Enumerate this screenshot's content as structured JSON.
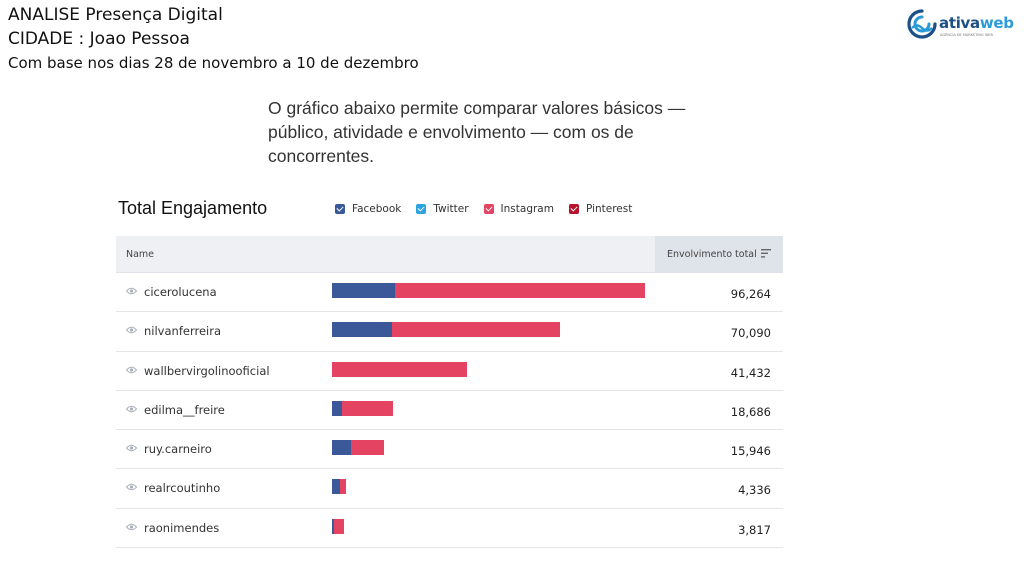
{
  "header": {
    "line1": "ANALISE Presença Digital",
    "line2": "CIDADE : Joao Pessoa",
    "line3": "Com base nos dias 28 de novembro a 10 de dezembro"
  },
  "logo": {
    "name_part1": "ativa",
    "name_part2": "web",
    "tagline": "AGÊNCIA DE MARKETING WEB"
  },
  "intro": "O gráfico abaixo permite comparar valores básicos — público, atividade e envolvimento — com os de concorrentes.",
  "legend": [
    {
      "label": "Facebook",
      "color": "#3b5998"
    },
    {
      "label": "Twitter",
      "color": "#2aa3e0"
    },
    {
      "label": "Instagram",
      "color": "#e44462"
    },
    {
      "label": "Pinterest",
      "color": "#b5122b"
    }
  ],
  "table": {
    "col_name": "Name",
    "col_total": "Envolvimento total"
  },
  "colors": {
    "facebook": "#3b5998",
    "instagram": "#e44462"
  },
  "chart_data": {
    "type": "bar",
    "title": "Total Engajamento",
    "orientation": "horizontal-stacked",
    "categories": [
      "cicerolucena",
      "nilvanferreira",
      "wallbervirgolinooficial",
      "edilma__freire",
      "ruy.carneiro",
      "realrcoutinho",
      "raonimendes"
    ],
    "totals": [
      "96,264",
      "70,090",
      "41,432",
      "18,686",
      "15,946",
      "4,336",
      "3,817"
    ],
    "series": [
      {
        "name": "Facebook",
        "values": [
          19300,
          18400,
          0,
          3200,
          5800,
          2600,
          500
        ]
      },
      {
        "name": "Instagram",
        "values": [
          76964,
          51690,
          41432,
          15486,
          10146,
          1736,
          3317
        ]
      }
    ]
  }
}
